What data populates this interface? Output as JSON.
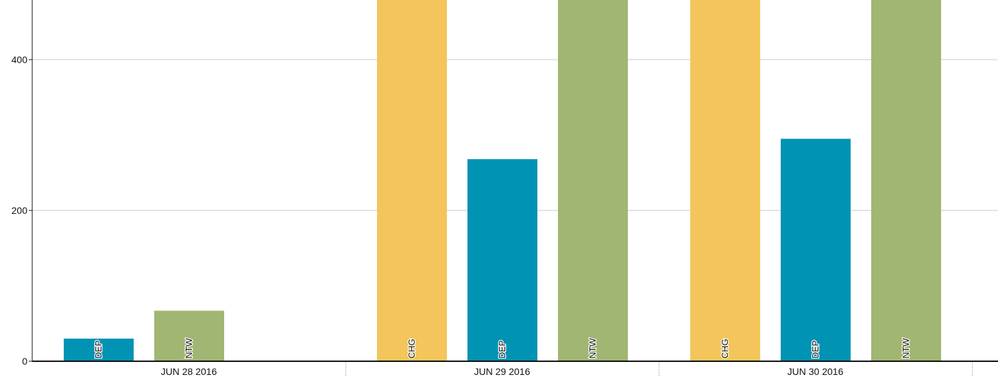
{
  "chart_data": {
    "type": "bar",
    "title": "",
    "xlabel": "",
    "ylabel": "",
    "ylim": [
      0,
      480
    ],
    "yticks": [
      0,
      200,
      400
    ],
    "grid": true,
    "legend": "none",
    "categories": [
      "JUN 28 2016",
      "JUN 29 2016",
      "JUN 30 2016"
    ],
    "groups": [
      {
        "category": "JUN 28 2016",
        "bars": [
          {
            "label": "DEP",
            "value": 30,
            "color": "#0093b4"
          },
          {
            "label": "NTW",
            "value": 67,
            "color": "#a1b672"
          }
        ]
      },
      {
        "category": "JUN 29 2016",
        "bars": [
          {
            "label": "CHG",
            "value": 480,
            "color": "#f3c55a"
          },
          {
            "label": "DEP",
            "value": 268,
            "color": "#0093b4"
          },
          {
            "label": "NTW",
            "value": 480,
            "color": "#a1b672"
          }
        ]
      },
      {
        "category": "JUN 30 2016",
        "bars": [
          {
            "label": "CHG",
            "value": 480,
            "color": "#f3c55a"
          },
          {
            "label": "DEP",
            "value": 295,
            "color": "#0093b4"
          },
          {
            "label": "NTW",
            "value": 480,
            "color": "#a1b672"
          }
        ]
      }
    ]
  }
}
